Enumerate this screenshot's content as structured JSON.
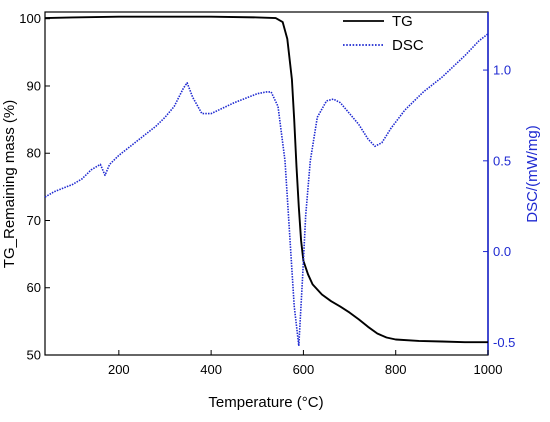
{
  "chart_data": {
    "type": "line",
    "xlabel": "Temperature (°C)",
    "ylabel_left": "TG_Remaining mass (%)",
    "ylabel_right": "DSC/(mW/mg)",
    "xlim": [
      40,
      1000
    ],
    "ylim_left": [
      50,
      101
    ],
    "ylim_right": [
      -0.57,
      1.32
    ],
    "x_ticks": [
      200,
      400,
      600,
      800,
      1000
    ],
    "y_left_ticks": [
      50,
      60,
      70,
      80,
      90,
      100
    ],
    "y_right_ticks": [
      -0.5,
      0.0,
      0.5,
      1.0
    ],
    "y_right_tick_labels": [
      "-0.5",
      "0.0",
      "0.5",
      "1.0"
    ],
    "legend_position": "top-right",
    "colors": {
      "tg": "#000000",
      "dsc": "#1f2ad1",
      "axis_right": "#1f2ad1"
    },
    "series": [
      {
        "name": "TG",
        "axis": "left",
        "style": "solid",
        "x": [
          40,
          100,
          200,
          300,
          400,
          500,
          540,
          555,
          565,
          575,
          580,
          585,
          590,
          595,
          600,
          610,
          620,
          640,
          660,
          680,
          700,
          720,
          740,
          760,
          780,
          800,
          850,
          900,
          950,
          1000
        ],
        "y": [
          100.1,
          100.2,
          100.3,
          100.3,
          100.3,
          100.2,
          100.1,
          99.5,
          97.0,
          91.0,
          85.0,
          78.0,
          72.0,
          67.0,
          64.0,
          62.0,
          60.5,
          59.0,
          58.0,
          57.2,
          56.3,
          55.3,
          54.2,
          53.2,
          52.6,
          52.3,
          52.1,
          52.0,
          51.9,
          51.9
        ]
      },
      {
        "name": "DSC",
        "axis": "right",
        "style": "dotted",
        "x": [
          40,
          60,
          80,
          100,
          120,
          140,
          160,
          170,
          180,
          200,
          220,
          250,
          280,
          300,
          320,
          340,
          348,
          360,
          380,
          400,
          450,
          500,
          520,
          530,
          545,
          560,
          570,
          580,
          590,
          598,
          605,
          615,
          630,
          650,
          665,
          680,
          700,
          720,
          740,
          755,
          770,
          790,
          820,
          860,
          900,
          950,
          980,
          1000
        ],
        "y": [
          0.3,
          0.33,
          0.35,
          0.37,
          0.4,
          0.45,
          0.48,
          0.42,
          0.48,
          0.53,
          0.57,
          0.63,
          0.69,
          0.74,
          0.8,
          0.9,
          0.93,
          0.85,
          0.76,
          0.76,
          0.82,
          0.87,
          0.88,
          0.88,
          0.8,
          0.5,
          0.1,
          -0.3,
          -0.52,
          -0.15,
          0.2,
          0.5,
          0.74,
          0.83,
          0.84,
          0.82,
          0.76,
          0.7,
          0.62,
          0.58,
          0.6,
          0.68,
          0.78,
          0.88,
          0.96,
          1.08,
          1.16,
          1.2
        ]
      }
    ]
  }
}
